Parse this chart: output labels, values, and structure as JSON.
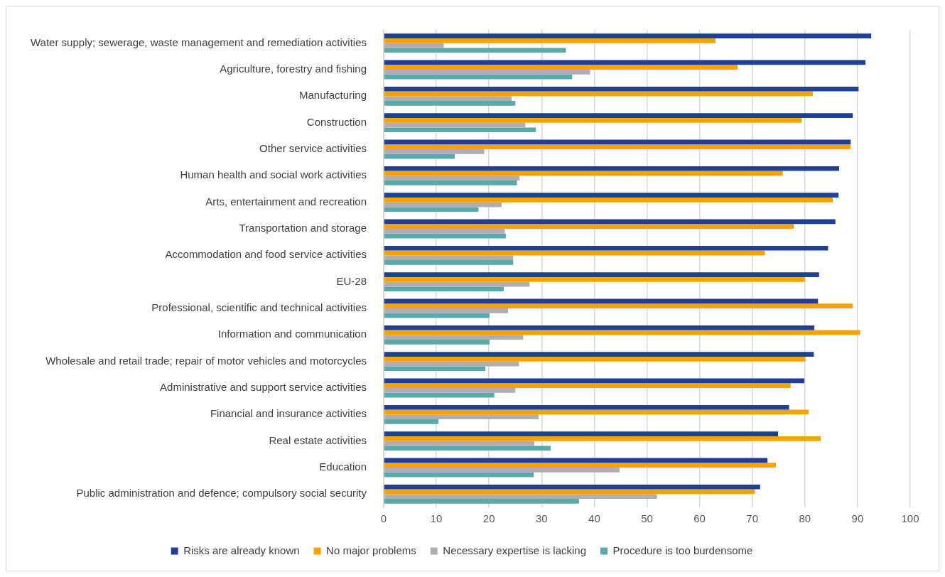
{
  "chart_data": {
    "type": "bar",
    "orientation": "horizontal",
    "categories": [
      "Water supply; sewerage, waste management and remediation activities",
      "Agriculture, forestry and fishing",
      "Manufacturing",
      "Construction",
      "Other service activities",
      "Human health and social work activities",
      "Arts, entertainment and recreation",
      "Transportation and storage",
      "Accommodation and food service activities",
      "EU-28",
      "Professional, scientific and technical activities",
      "Information and communication",
      "Wholesale and retail trade; repair of motor vehicles and motorcycles",
      "Administrative and support service activities",
      "Financial and insurance activities",
      "Real estate activities",
      "Education",
      "Public administration and defence; compulsory social security"
    ],
    "series": [
      {
        "name": "Risks are already known",
        "color": "#203f9a",
        "values": [
          92.6,
          91.5,
          90.2,
          89.1,
          88.7,
          86.5,
          86.4,
          85.8,
          84.4,
          82.7,
          82.5,
          81.8,
          81.7,
          79.9,
          77.0,
          74.9,
          72.9,
          71.5
        ]
      },
      {
        "name": "No major problems",
        "color": "#f8a300",
        "values": [
          63.0,
          67.2,
          81.5,
          79.4,
          88.7,
          75.8,
          85.3,
          77.9,
          72.4,
          80.0,
          89.1,
          90.5,
          80.1,
          77.3,
          80.7,
          83.0,
          74.5,
          70.5
        ]
      },
      {
        "name": "Necessary expertise is lacking",
        "color": "#afafaf",
        "values": [
          11.4,
          39.2,
          24.3,
          26.9,
          19.1,
          25.8,
          22.4,
          23.0,
          24.6,
          27.7,
          23.6,
          26.5,
          25.7,
          25.0,
          29.4,
          28.6,
          44.8,
          51.9
        ]
      },
      {
        "name": "Procedure is too burdensome",
        "color": "#58aaad",
        "values": [
          34.6,
          35.8,
          25.0,
          28.9,
          13.5,
          25.3,
          18.0,
          23.2,
          24.6,
          22.8,
          20.1,
          20.1,
          19.3,
          21.0,
          10.4,
          31.7,
          28.5,
          37.1
        ]
      }
    ],
    "xlim": [
      0,
      100
    ],
    "xticks": [
      0,
      10,
      20,
      30,
      40,
      50,
      60,
      70,
      80,
      90,
      100
    ],
    "grid": "x",
    "legend": "bottom"
  }
}
